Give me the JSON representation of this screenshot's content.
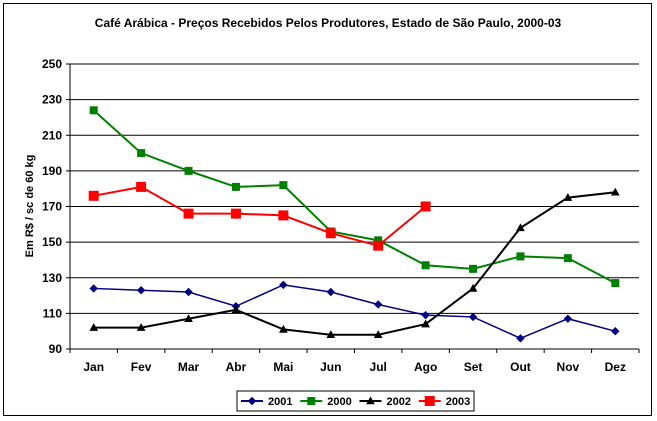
{
  "chart_data": {
    "type": "line",
    "title": "Café Arábica - Preços Recebidos Pelos Produtores, Estado de São Paulo, 2000-03",
    "xlabel": "",
    "ylabel": "Em R$ / sc de 60 kg",
    "ylim": [
      90,
      250
    ],
    "yticks": [
      90,
      110,
      130,
      150,
      170,
      190,
      210,
      230,
      250
    ],
    "categories": [
      "Jan",
      "Fev",
      "Mar",
      "Abr",
      "Mai",
      "Jun",
      "Jul",
      "Ago",
      "Set",
      "Out",
      "Nov",
      "Dez"
    ],
    "grid": "horizontal",
    "legend_position": "bottom",
    "series": [
      {
        "name": "2001",
        "color": "#000080",
        "marker": "diamond",
        "values": [
          124,
          123,
          122,
          114,
          126,
          122,
          115,
          109,
          108,
          96,
          107,
          100
        ]
      },
      {
        "name": "2000",
        "color": "#008000",
        "marker": "square",
        "values": [
          224,
          200,
          190,
          181,
          182,
          156,
          151,
          137,
          135,
          142,
          141,
          127
        ]
      },
      {
        "name": "2002",
        "color": "#000000",
        "marker": "triangle",
        "values": [
          102,
          102,
          107,
          112,
          101,
          98,
          98,
          104,
          124,
          158,
          175,
          178
        ]
      },
      {
        "name": "2003",
        "color": "#ff0000",
        "marker": "square",
        "values": [
          176,
          181,
          166,
          166,
          165,
          155,
          148,
          170,
          null,
          null,
          null,
          null
        ]
      }
    ]
  }
}
